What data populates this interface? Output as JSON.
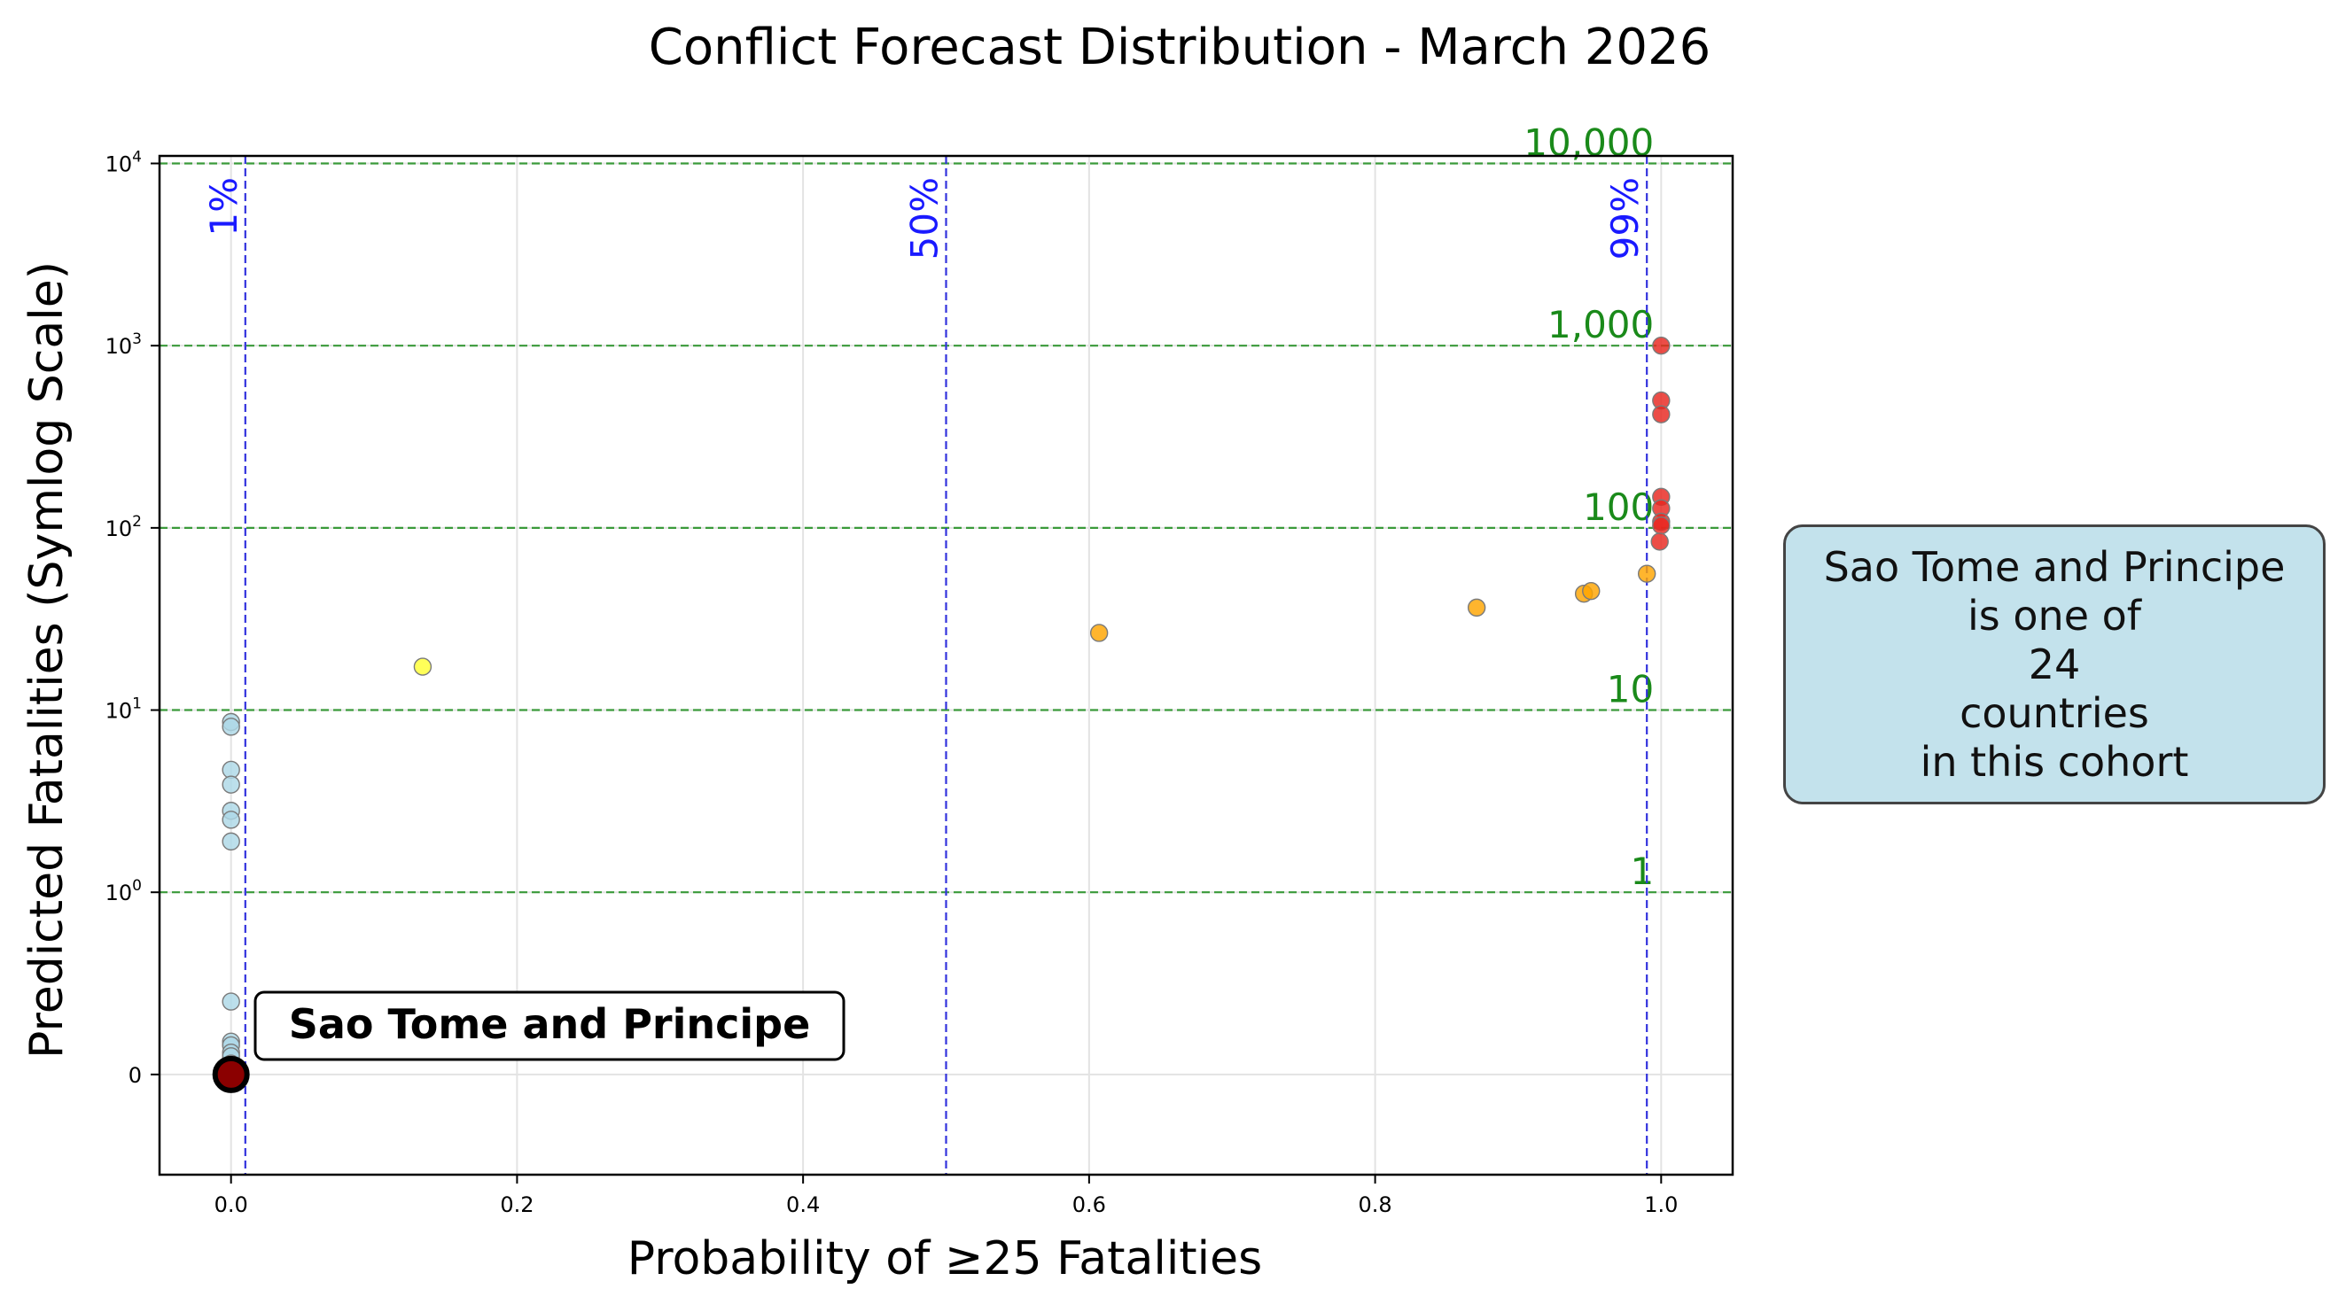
{
  "colors": {
    "background": "#ffffff",
    "axes": "#000000",
    "grid": "#e3e3e3",
    "threshold_line": "#3333dd",
    "threshold_text": "#1a1aff",
    "fatality_line": "#3a9a3a",
    "fatality_text": "#1a8a1a",
    "highlight_fill": "#8b0000",
    "highlight_edge": "#000000",
    "cohort_box_fill": "#c3e2ec",
    "cohort_box_edge": "#444444"
  },
  "chart_data": {
    "type": "scatter",
    "title": "Conflict Forecast Distribution - March 2026",
    "xlabel": "Probability of ≥25 Fatalities",
    "ylabel": "Predicted Fatalities (Symlog Scale)",
    "xlim": [
      -0.05,
      1.05
    ],
    "ylim": [
      -0.55,
      11000
    ],
    "yscale": "symlog",
    "grid": true,
    "x_ticks": [
      0.0,
      0.2,
      0.4,
      0.6,
      0.8,
      1.0
    ],
    "x_tick_labels": [
      "0.0",
      "0.2",
      "0.4",
      "0.6",
      "0.8",
      "1.0"
    ],
    "y_ticks": [
      {
        "value": 0,
        "base": "0",
        "exp": ""
      },
      {
        "value": 1,
        "base": "10",
        "exp": "0"
      },
      {
        "value": 10,
        "base": "10",
        "exp": "1"
      },
      {
        "value": 100,
        "base": "10",
        "exp": "2"
      },
      {
        "value": 1000,
        "base": "10",
        "exp": "3"
      },
      {
        "value": 10000,
        "base": "10",
        "exp": "4"
      }
    ],
    "probability_thresholds": [
      {
        "x": 0.01,
        "label": "1%"
      },
      {
        "x": 0.5,
        "label": "50%"
      },
      {
        "x": 0.99,
        "label": "99%"
      }
    ],
    "fatality_thresholds": [
      {
        "y": 1,
        "label": "1"
      },
      {
        "y": 10,
        "label": "10"
      },
      {
        "y": 100,
        "label": "100"
      },
      {
        "y": 1000,
        "label": "1,000"
      },
      {
        "y": 10000,
        "label": "10,000"
      }
    ],
    "series": [
      {
        "color": "#add8e6",
        "points": [
          {
            "x": 0.0,
            "y": 8.6
          },
          {
            "x": 0.0,
            "y": 8.1
          },
          {
            "x": 0.0,
            "y": 4.7
          },
          {
            "x": 0.0,
            "y": 3.9
          },
          {
            "x": 0.0,
            "y": 2.8
          },
          {
            "x": 0.0,
            "y": 2.5
          },
          {
            "x": 0.0,
            "y": 1.9
          },
          {
            "x": 0.0,
            "y": 0.4
          },
          {
            "x": 0.0,
            "y": 0.18
          },
          {
            "x": 0.0,
            "y": 0.16
          },
          {
            "x": 0.0,
            "y": 0.12
          },
          {
            "x": 0.0,
            "y": 0.1
          },
          {
            "x": 0.0,
            "y": 0.06
          },
          {
            "x": 0.0,
            "y": 0.03
          },
          {
            "x": 0.0,
            "y": 0.02
          },
          {
            "x": 0.0,
            "y": 0.01
          }
        ]
      },
      {
        "color": "#ffff33",
        "points": [
          {
            "x": 0.134,
            "y": 17.3
          }
        ]
      },
      {
        "color": "#ffa500",
        "points": [
          {
            "x": 0.607,
            "y": 26.5
          },
          {
            "x": 0.871,
            "y": 36.5
          },
          {
            "x": 0.946,
            "y": 43.5
          },
          {
            "x": 0.951,
            "y": 45.0
          },
          {
            "x": 0.99,
            "y": 56.0
          }
        ]
      },
      {
        "color": "#e8261f",
        "points": [
          {
            "x": 1.0,
            "y": 1000
          },
          {
            "x": 1.0,
            "y": 500
          },
          {
            "x": 1.0,
            "y": 420
          },
          {
            "x": 1.0,
            "y": 148
          },
          {
            "x": 1.0,
            "y": 128
          },
          {
            "x": 1.0,
            "y": 108
          },
          {
            "x": 1.0,
            "y": 103
          },
          {
            "x": 0.999,
            "y": 84
          }
        ]
      }
    ],
    "highlight": {
      "name": "Sao Tome and Principe",
      "x": 0.0,
      "y": 0.0
    }
  },
  "cohort_box": {
    "line1": "Sao Tome and Principe",
    "line2": "is one of",
    "line3": "24",
    "line4": "countries",
    "line5": "in this cohort"
  }
}
